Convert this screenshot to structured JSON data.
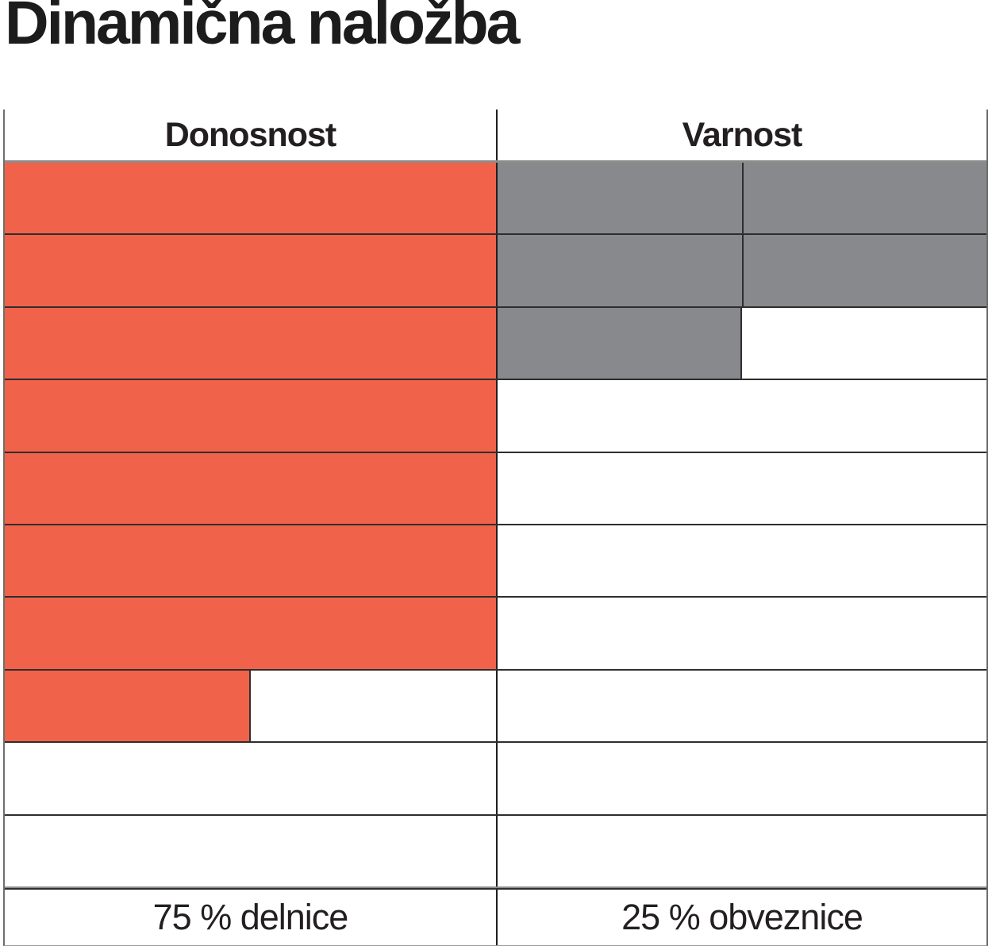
{
  "title": "Dinamična naložba",
  "colors": {
    "donosnost_fill": "#F1624A",
    "varnost_fill": "#88898C",
    "grid_line": "#2e2e2e"
  },
  "table": {
    "num_rows": 10,
    "columns": [
      {
        "id": "donosnost",
        "header": "Donosnost",
        "footer": "75 % delnice",
        "filled_rows": 7.5,
        "fill_color_key": "donosnost_fill",
        "half_divider_on_full_rows": false
      },
      {
        "id": "varnost",
        "header": "Varnost",
        "footer": "25 % obveznice",
        "filled_rows": 2.5,
        "fill_color_key": "varnost_fill",
        "half_divider_on_full_rows": true
      }
    ]
  },
  "chart_data": {
    "type": "bar",
    "orientation": "horizontal",
    "title": "Dinamična naložba",
    "categories": [
      "Donosnost",
      "Varnost"
    ],
    "values": [
      7.5,
      2.5
    ],
    "value_range": [
      0,
      10
    ],
    "unit": "filled rows out of 10 (1 row = 10 %)",
    "annotations": [
      "75 % delnice",
      "25 % obveznice"
    ],
    "grid": true,
    "legend": "none",
    "series_colors": [
      "#F1624A",
      "#88898C"
    ]
  }
}
